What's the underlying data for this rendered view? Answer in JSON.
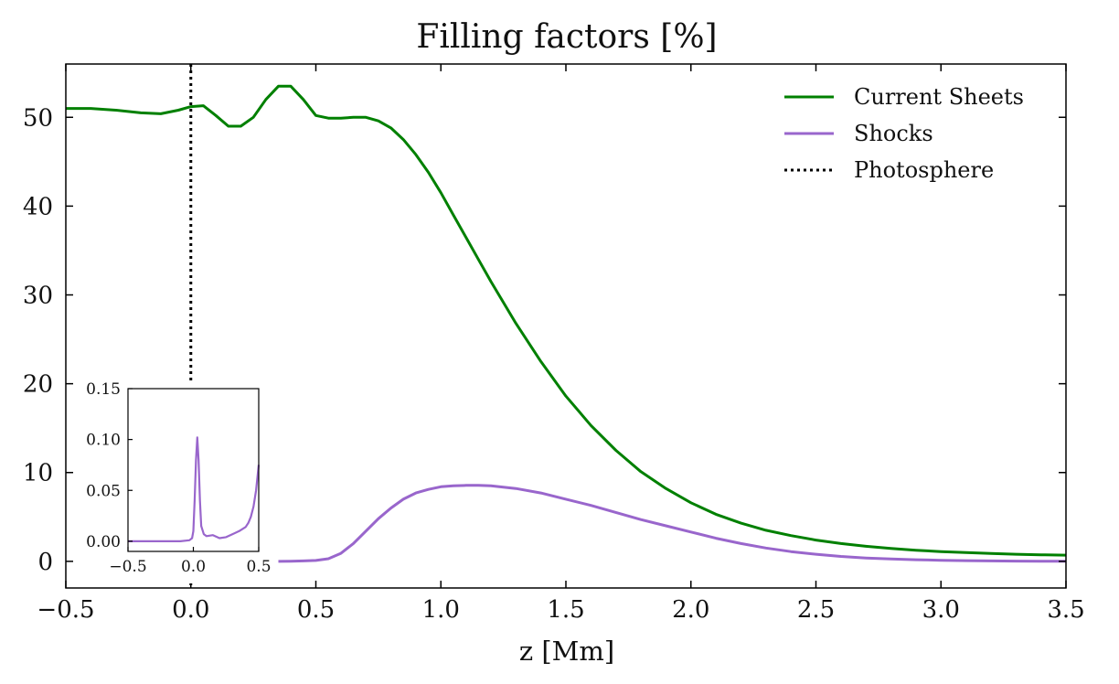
{
  "chart_data": {
    "type": "line",
    "title": "Filling factors [%]",
    "xlabel": "z [Mm]",
    "ylabel": "",
    "xlim": [
      -0.5,
      3.5
    ],
    "ylim": [
      -3,
      56
    ],
    "xticks": [
      "−0.5",
      "0.0",
      "0.5",
      "1.0",
      "1.5",
      "2.0",
      "2.5",
      "3.0",
      "3.5"
    ],
    "yticks": [
      "0",
      "10",
      "20",
      "30",
      "40",
      "50"
    ],
    "grid": false,
    "legend_position": "top-right",
    "series": [
      {
        "name": "Current Sheets",
        "color": "#008000",
        "x": [
          -0.5,
          -0.4,
          -0.3,
          -0.2,
          -0.12,
          -0.05,
          0.0,
          0.05,
          0.1,
          0.15,
          0.2,
          0.25,
          0.3,
          0.35,
          0.4,
          0.45,
          0.5,
          0.55,
          0.6,
          0.65,
          0.7,
          0.75,
          0.8,
          0.85,
          0.9,
          0.95,
          1.0,
          1.05,
          1.1,
          1.15,
          1.2,
          1.3,
          1.4,
          1.5,
          1.6,
          1.7,
          1.8,
          1.9,
          2.0,
          2.1,
          2.2,
          2.3,
          2.4,
          2.5,
          2.6,
          2.7,
          2.8,
          2.9,
          3.0,
          3.1,
          3.2,
          3.3,
          3.4,
          3.5
        ],
        "values": [
          51.0,
          51.0,
          50.8,
          50.5,
          50.4,
          50.8,
          51.2,
          51.3,
          50.2,
          49.0,
          49.0,
          50.0,
          52.0,
          53.5,
          53.5,
          52.0,
          50.2,
          49.9,
          49.9,
          50.0,
          50.0,
          49.6,
          48.8,
          47.5,
          45.8,
          43.8,
          41.5,
          39.0,
          36.5,
          34.0,
          31.5,
          26.8,
          22.5,
          18.6,
          15.3,
          12.5,
          10.1,
          8.2,
          6.6,
          5.3,
          4.3,
          3.5,
          2.9,
          2.4,
          2.0,
          1.7,
          1.45,
          1.25,
          1.1,
          0.98,
          0.88,
          0.8,
          0.74,
          0.7
        ]
      },
      {
        "name": "Shocks",
        "color": "#9966cc",
        "x": [
          0.35,
          0.4,
          0.45,
          0.5,
          0.55,
          0.6,
          0.65,
          0.7,
          0.75,
          0.8,
          0.85,
          0.9,
          0.95,
          1.0,
          1.05,
          1.1,
          1.15,
          1.2,
          1.3,
          1.4,
          1.5,
          1.6,
          1.7,
          1.8,
          1.9,
          2.0,
          2.1,
          2.2,
          2.3,
          2.4,
          2.5,
          2.6,
          2.7,
          2.8,
          2.9,
          3.0,
          3.1,
          3.2,
          3.3,
          3.4,
          3.5
        ],
        "values": [
          0.0,
          0.02,
          0.05,
          0.1,
          0.3,
          0.9,
          2.0,
          3.4,
          4.8,
          6.0,
          7.0,
          7.7,
          8.1,
          8.4,
          8.5,
          8.55,
          8.55,
          8.5,
          8.2,
          7.7,
          7.0,
          6.3,
          5.5,
          4.7,
          4.0,
          3.3,
          2.6,
          2.0,
          1.5,
          1.1,
          0.8,
          0.55,
          0.38,
          0.26,
          0.18,
          0.12,
          0.08,
          0.05,
          0.03,
          0.02,
          0.01
        ]
      },
      {
        "name": "Photosphere",
        "color": "#000000",
        "style": "dotted",
        "x_constant": 0.0
      }
    ],
    "inset": {
      "type": "line",
      "xlim": [
        -0.5,
        0.5
      ],
      "ylim": [
        -0.01,
        0.15
      ],
      "xticks": [
        "−0.5",
        "0.0",
        "0.5"
      ],
      "yticks": [
        "0.00",
        "0.05",
        "0.10",
        "0.15"
      ],
      "series": [
        {
          "name": "Shocks",
          "color": "#9966cc",
          "x": [
            -0.5,
            -0.3,
            -0.1,
            -0.03,
            -0.01,
            0.0,
            0.01,
            0.02,
            0.03,
            0.04,
            0.05,
            0.06,
            0.08,
            0.1,
            0.15,
            0.2,
            0.25,
            0.3,
            0.35,
            0.4,
            0.42,
            0.44,
            0.46,
            0.48,
            0.5
          ],
          "values": [
            0.0,
            0.0,
            0.0,
            0.001,
            0.003,
            0.01,
            0.04,
            0.08,
            0.102,
            0.08,
            0.04,
            0.015,
            0.007,
            0.005,
            0.006,
            0.003,
            0.004,
            0.007,
            0.01,
            0.014,
            0.018,
            0.024,
            0.034,
            0.05,
            0.075
          ]
        }
      ]
    }
  }
}
